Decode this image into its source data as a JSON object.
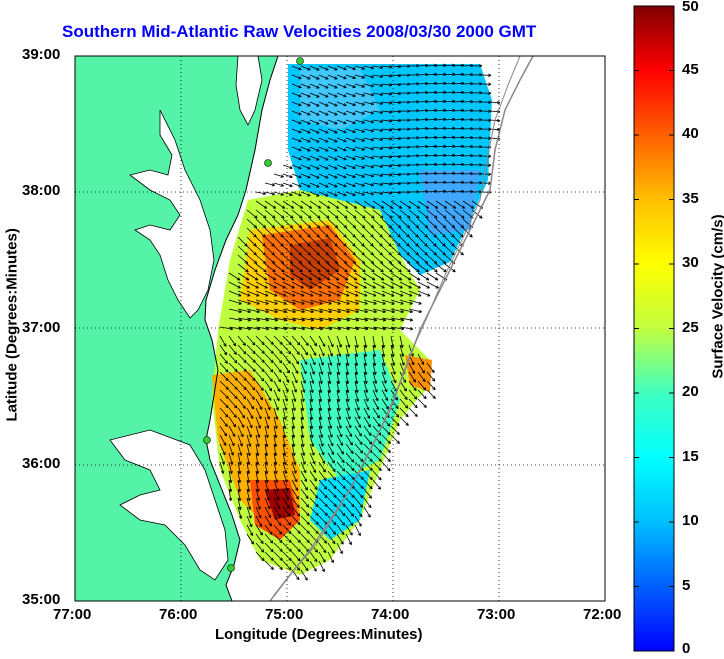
{
  "title": "Southern Mid-Atlantic Raw Velocities 2008/03/30 2000 GMT",
  "axes": {
    "xlabel": "Longitude (Degrees:Minutes)",
    "ylabel": "Latitude (Degrees:Minutes)",
    "xticks": [
      "77:00",
      "76:00",
      "75:00",
      "74:00",
      "73:00",
      "72:00"
    ],
    "yticks": [
      "39:00",
      "38:00",
      "37:00",
      "36:00",
      "35:00"
    ]
  },
  "colorbar": {
    "label": "Surface Velocity (cm/s)",
    "ticks": [
      "0",
      "5",
      "10",
      "15",
      "20",
      "25",
      "30",
      "35",
      "40",
      "45",
      "50"
    ],
    "min": 0,
    "max": 50
  },
  "colors": {
    "land": "#55f3a8",
    "water": "#ffffff",
    "title": "#0000ff",
    "station": "#33cc33"
  },
  "chart_data": {
    "type": "heatmap",
    "xlim": [
      -77,
      -72
    ],
    "ylim": [
      35,
      39
    ],
    "grid": true,
    "legend": "colorbar-right"
  }
}
